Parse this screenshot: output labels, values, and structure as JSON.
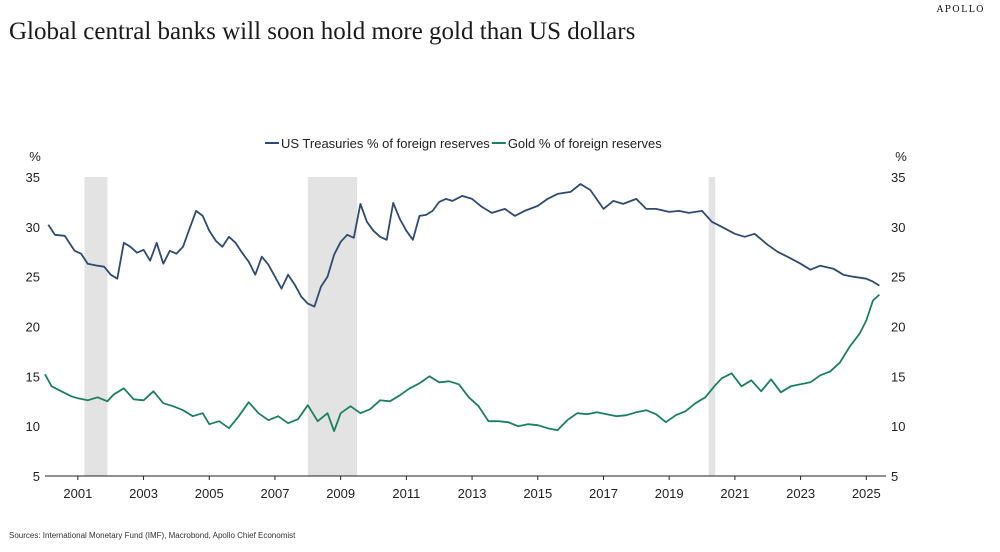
{
  "brand": "APOLLO",
  "chart_data": {
    "type": "line",
    "title": "Global central banks will soon hold more gold than US dollars",
    "source": "Sources: International Monetary Fund (IMF), Macrobond, Apollo Chief Economist",
    "y_unit_left": "%",
    "y_unit_right": "%",
    "ylim": [
      5,
      35
    ],
    "yticks": [
      5,
      10,
      15,
      20,
      25,
      30,
      35
    ],
    "xlim": [
      2000.0,
      2025.6
    ],
    "xticks": [
      2001,
      2003,
      2005,
      2007,
      2009,
      2011,
      2013,
      2015,
      2017,
      2019,
      2021,
      2023,
      2025
    ],
    "legend_position": "top-center",
    "grid": false,
    "recessions": [
      [
        2001.2,
        2001.9
      ],
      [
        2008.0,
        2009.5
      ],
      [
        2020.2,
        2020.4
      ]
    ],
    "colors": {
      "treasuries": "#2f4b73",
      "gold": "#1a8060",
      "recession": "#e3e3e3",
      "axis": "#222222"
    },
    "series": [
      {
        "name": "US Treasuries % of foreign reserves",
        "key": "treasuries",
        "x": [
          2000.1,
          2000.3,
          2000.6,
          2000.9,
          2001.1,
          2001.3,
          2001.6,
          2001.8,
          2002.0,
          2002.2,
          2002.4,
          2002.6,
          2002.8,
          2003.0,
          2003.2,
          2003.4,
          2003.6,
          2003.8,
          2004.0,
          2004.2,
          2004.4,
          2004.6,
          2004.8,
          2005.0,
          2005.2,
          2005.4,
          2005.6,
          2005.8,
          2006.0,
          2006.2,
          2006.4,
          2006.6,
          2006.8,
          2007.0,
          2007.2,
          2007.4,
          2007.6,
          2007.8,
          2008.0,
          2008.2,
          2008.4,
          2008.6,
          2008.8,
          2009.0,
          2009.2,
          2009.4,
          2009.6,
          2009.8,
          2010.0,
          2010.2,
          2010.4,
          2010.6,
          2010.8,
          2011.0,
          2011.2,
          2011.4,
          2011.6,
          2011.8,
          2012.0,
          2012.2,
          2012.4,
          2012.7,
          2013.0,
          2013.3,
          2013.6,
          2014.0,
          2014.3,
          2014.6,
          2015.0,
          2015.3,
          2015.6,
          2016.0,
          2016.3,
          2016.6,
          2017.0,
          2017.3,
          2017.6,
          2018.0,
          2018.3,
          2018.6,
          2019.0,
          2019.3,
          2019.6,
          2020.0,
          2020.3,
          2020.6,
          2021.0,
          2021.3,
          2021.6,
          2022.0,
          2022.3,
          2022.6,
          2023.0,
          2023.3,
          2023.6,
          2024.0,
          2024.3,
          2024.6,
          2025.0,
          2025.2,
          2025.4
        ],
        "values": [
          30.2,
          29.2,
          29.1,
          27.6,
          27.3,
          26.3,
          26.1,
          26.0,
          25.2,
          24.8,
          28.4,
          28.0,
          27.4,
          27.7,
          26.6,
          28.4,
          26.3,
          27.6,
          27.3,
          28.0,
          29.8,
          31.6,
          31.1,
          29.6,
          28.6,
          28.0,
          29.0,
          28.4,
          27.4,
          26.5,
          25.2,
          27.0,
          26.2,
          25.0,
          23.8,
          25.2,
          24.2,
          23.0,
          22.3,
          22.0,
          24.0,
          25.0,
          27.2,
          28.5,
          29.2,
          28.9,
          32.3,
          30.5,
          29.6,
          29.0,
          28.7,
          32.4,
          30.8,
          29.6,
          28.7,
          31.1,
          31.2,
          31.6,
          32.5,
          32.8,
          32.6,
          33.1,
          32.8,
          32.0,
          31.4,
          31.8,
          31.1,
          31.6,
          32.1,
          32.8,
          33.3,
          33.5,
          34.3,
          33.7,
          31.8,
          32.6,
          32.3,
          32.8,
          31.8,
          31.8,
          31.5,
          31.6,
          31.4,
          31.6,
          30.5,
          30.0,
          29.3,
          29.0,
          29.3,
          28.2,
          27.5,
          27.0,
          26.3,
          25.7,
          26.1,
          25.8,
          25.2,
          25.0,
          24.8,
          24.5,
          24.1
        ]
      },
      {
        "name": "Gold % of foreign reserves",
        "key": "gold",
        "x": [
          2000.0,
          2000.2,
          2000.5,
          2000.8,
          2001.0,
          2001.3,
          2001.6,
          2001.9,
          2002.1,
          2002.4,
          2002.7,
          2003.0,
          2003.3,
          2003.6,
          2003.9,
          2004.2,
          2004.5,
          2004.8,
          2005.0,
          2005.3,
          2005.6,
          2005.9,
          2006.2,
          2006.5,
          2006.8,
          2007.1,
          2007.4,
          2007.7,
          2008.0,
          2008.3,
          2008.6,
          2008.8,
          2009.0,
          2009.3,
          2009.6,
          2009.9,
          2010.2,
          2010.5,
          2010.8,
          2011.1,
          2011.4,
          2011.7,
          2012.0,
          2012.3,
          2012.6,
          2012.9,
          2013.2,
          2013.5,
          2013.8,
          2014.1,
          2014.4,
          2014.7,
          2015.0,
          2015.3,
          2015.6,
          2015.9,
          2016.2,
          2016.5,
          2016.8,
          2017.1,
          2017.4,
          2017.7,
          2018.0,
          2018.3,
          2018.6,
          2018.9,
          2019.2,
          2019.5,
          2019.8,
          2020.1,
          2020.4,
          2020.6,
          2020.9,
          2021.2,
          2021.5,
          2021.8,
          2022.1,
          2022.4,
          2022.7,
          2023.0,
          2023.3,
          2023.6,
          2023.9,
          2024.2,
          2024.5,
          2024.8,
          2025.0,
          2025.2,
          2025.4
        ],
        "values": [
          15.2,
          14.0,
          13.5,
          13.0,
          12.8,
          12.6,
          12.9,
          12.5,
          13.2,
          13.8,
          12.7,
          12.6,
          13.5,
          12.3,
          12.0,
          11.6,
          11.0,
          11.3,
          10.2,
          10.5,
          9.8,
          11.0,
          12.4,
          11.3,
          10.6,
          11.0,
          10.3,
          10.7,
          12.1,
          10.5,
          11.3,
          9.5,
          11.3,
          12.0,
          11.3,
          11.7,
          12.6,
          12.5,
          13.1,
          13.8,
          14.3,
          15.0,
          14.4,
          14.5,
          14.2,
          12.9,
          12.0,
          10.5,
          10.5,
          10.4,
          10.0,
          10.2,
          10.1,
          9.8,
          9.6,
          10.6,
          11.3,
          11.2,
          11.4,
          11.2,
          11.0,
          11.1,
          11.4,
          11.6,
          11.2,
          10.4,
          11.1,
          11.5,
          12.3,
          12.9,
          14.1,
          14.8,
          15.3,
          14.0,
          14.6,
          13.5,
          14.7,
          13.4,
          14.0,
          14.2,
          14.4,
          15.1,
          15.5,
          16.4,
          18.0,
          19.3,
          20.6,
          22.6,
          23.2
        ]
      }
    ]
  }
}
